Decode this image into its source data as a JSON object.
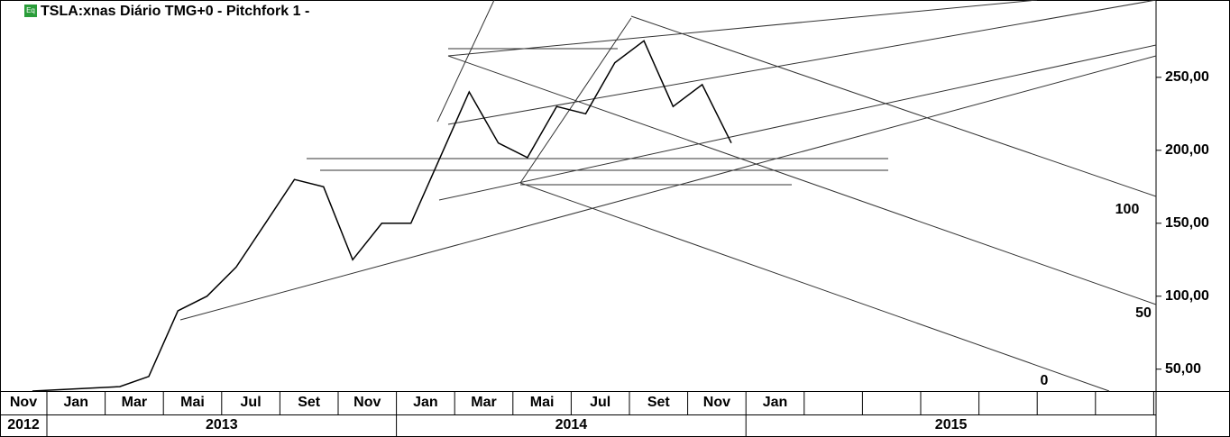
{
  "chart_data": {
    "type": "line",
    "title": "TSLA:xnas Diário TMG+0  -  Pitchfork 1 -",
    "badge": "Eq",
    "x": [
      "2012-12",
      "2013-01",
      "2013-02",
      "2013-03",
      "2013-04",
      "2013-05",
      "2013-06",
      "2013-07",
      "2013-08",
      "2013-09",
      "2013-10",
      "2013-11",
      "2013-12",
      "2014-01",
      "2014-02",
      "2014-03",
      "2014-04",
      "2014-05",
      "2014-06",
      "2014-07",
      "2014-08",
      "2014-09",
      "2014-10",
      "2014-11",
      "2014-12"
    ],
    "series": [
      {
        "name": "TSLA",
        "color": "#000000",
        "values": [
          35,
          36,
          37,
          38,
          45,
          90,
          100,
          120,
          150,
          180,
          175,
          125,
          150,
          150,
          195,
          240,
          205,
          195,
          230,
          225,
          260,
          275,
          230,
          245,
          205
        ]
      }
    ],
    "ylim": [
      35,
      303
    ],
    "yticks": [
      {
        "value": 50,
        "label": "50,00"
      },
      {
        "value": 100,
        "label": "100,00"
      },
      {
        "value": 150,
        "label": "150,00"
      },
      {
        "value": 200,
        "label": "200,00"
      },
      {
        "value": 250,
        "label": "250,00"
      }
    ],
    "month_labels": [
      "Nov",
      "Jan",
      "Mar",
      "Mai",
      "Jul",
      "Set",
      "Nov",
      "Jan",
      "Mar",
      "Mai",
      "Jul",
      "Set",
      "Nov",
      "Jan"
    ],
    "year_labels": [
      "2012",
      "2013",
      "2014",
      "2015"
    ],
    "annotations": [
      "100",
      "50",
      "0"
    ]
  }
}
